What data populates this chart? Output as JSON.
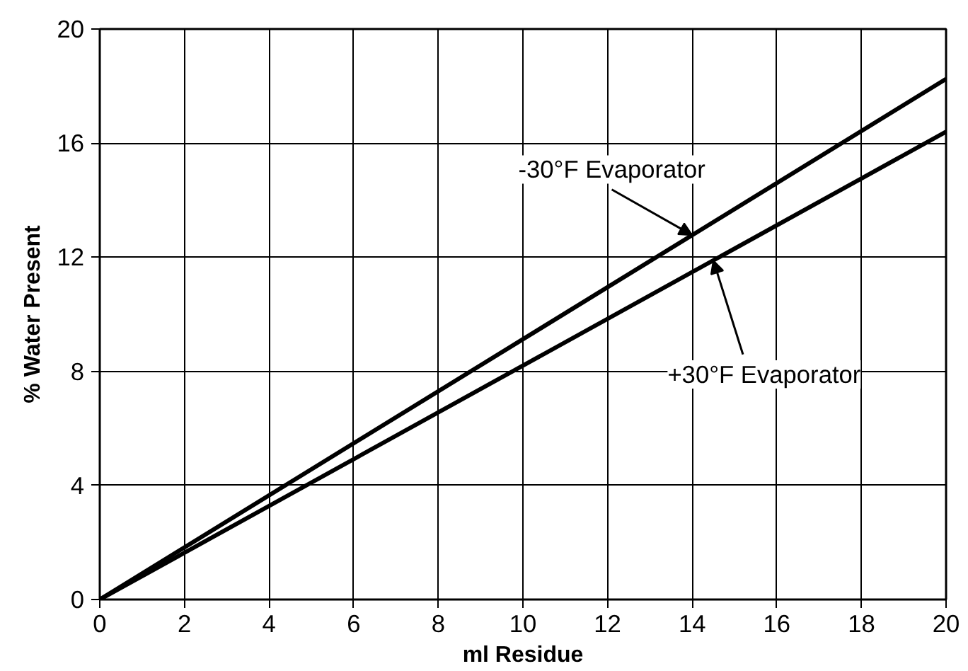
{
  "chart_data": {
    "type": "line",
    "xlabel": "ml Residue",
    "ylabel": "% Water Present",
    "x": [
      0,
      20
    ],
    "series": [
      {
        "name": "-30°F Evaporator",
        "color": "#000000",
        "values": [
          0,
          18.25
        ]
      },
      {
        "name": "+30°F Evaporator",
        "color": "#000000",
        "values": [
          0,
          16.4
        ]
      }
    ],
    "xlim": [
      0,
      20
    ],
    "ylim": [
      0,
      20
    ],
    "xticks": [
      0,
      2,
      4,
      6,
      8,
      10,
      12,
      14,
      16,
      18,
      20
    ],
    "yticks": [
      0,
      4,
      8,
      12,
      16,
      20
    ],
    "grid": true,
    "marker": "none",
    "line_style": "solid"
  }
}
